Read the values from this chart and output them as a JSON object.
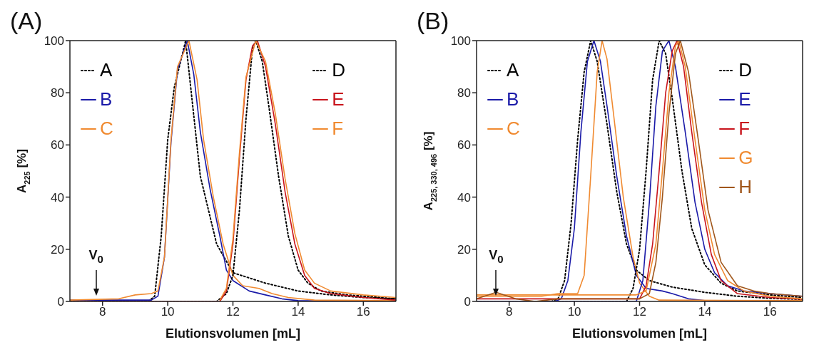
{
  "chart_data": [
    {
      "type": "line",
      "title": "(A)",
      "xlabel": "Elutionsvolumen [mL]",
      "ylabel": "A$_{225}$ [%]",
      "xlim": [
        7,
        17
      ],
      "xticks": [
        8,
        10,
        12,
        14,
        16
      ],
      "ylim": [
        0,
        100
      ],
      "yticks": [
        0,
        20,
        40,
        60,
        80,
        100
      ],
      "legend": "top",
      "grid": false,
      "marker": "none",
      "annotations": [
        "V$_{0}$"
      ],
      "series": [
        {
          "name": "A",
          "color": "#000000",
          "line_style": "dotted",
          "x": [
            7,
            9.4,
            9.6,
            9.8,
            10,
            10.2,
            10.55,
            11,
            11.5,
            12,
            13,
            14,
            15,
            16,
            17
          ],
          "values": [
            0,
            0,
            2,
            25,
            62,
            82,
            100,
            48,
            22,
            11,
            7,
            4,
            2.5,
            1.5,
            1
          ]
        },
        {
          "name": "B",
          "color": "#1a1aa8",
          "line_style": "solid",
          "x": [
            7,
            9.5,
            9.7,
            9.9,
            10.1,
            10.3,
            10.6,
            10.8,
            11,
            11.3,
            11.6,
            11.8,
            12,
            12.5,
            13,
            13.5,
            14,
            17
          ],
          "values": [
            0.5,
            0.5,
            2,
            17,
            61,
            89,
            100,
            87,
            65,
            43,
            25,
            12,
            8,
            4,
            2.5,
            1,
            0.3,
            0
          ]
        },
        {
          "name": "C",
          "color": "#f08a30",
          "line_style": "solid",
          "x": [
            7,
            8.5,
            9,
            9.5,
            9.7,
            9.9,
            10.1,
            10.3,
            10.65,
            10.9,
            11.1,
            11.4,
            11.7,
            12,
            12.3,
            12.8,
            13.2,
            13.7,
            14.5,
            17
          ],
          "values": [
            0.5,
            1,
            2.5,
            3,
            4,
            17,
            62,
            90,
            100,
            85,
            62,
            40,
            22,
            10,
            6,
            5,
            3,
            1.5,
            0.5,
            0.3
          ]
        },
        {
          "name": "D",
          "color": "#000000",
          "line_style": "dotted",
          "x": [
            7,
            11.5,
            11.8,
            12,
            12.2,
            12.4,
            12.6,
            12.7,
            12.9,
            13.1,
            13.4,
            13.7,
            14,
            14.3,
            14.7,
            15.5,
            17
          ],
          "values": [
            0,
            0,
            3,
            10,
            35,
            70,
            97,
            100,
            92,
            75,
            48,
            25,
            12,
            7,
            4,
            2.5,
            1
          ]
        },
        {
          "name": "E",
          "color": "#c8141c",
          "line_style": "solid",
          "x": [
            7,
            11.6,
            11.8,
            12,
            12.2,
            12.4,
            12.6,
            12.75,
            13,
            13.3,
            13.6,
            13.9,
            14.2,
            14.5,
            15,
            16,
            17
          ],
          "values": [
            0,
            0,
            4,
            22,
            55,
            85,
            98,
            100,
            90,
            68,
            42,
            22,
            10,
            5,
            3,
            1.5,
            0.5
          ]
        },
        {
          "name": "F",
          "color": "#f08a30",
          "line_style": "solid",
          "x": [
            11.6,
            11.8,
            12,
            12.2,
            12.4,
            12.7,
            13,
            13.3,
            13.6,
            13.9,
            14.2,
            14.5,
            15,
            16,
            17
          ],
          "values": [
            0.5,
            5,
            24,
            57,
            86,
            100,
            92,
            72,
            47,
            26,
            12,
            7,
            4,
            2.5,
            1.5
          ]
        }
      ]
    },
    {
      "type": "line",
      "title": "(B)",
      "xlabel": "Elutionsvolumen [mL]",
      "ylabel": "A$_{225, 330, 496}$ [%]",
      "xlim": [
        7,
        17
      ],
      "xticks": [
        8,
        10,
        12,
        14,
        16
      ],
      "ylim": [
        0,
        100
      ],
      "yticks": [
        0,
        20,
        40,
        60,
        80,
        100
      ],
      "legend": "top",
      "grid": false,
      "marker": "none",
      "annotations": [
        "V$_{0}$"
      ],
      "series": [
        {
          "name": "A",
          "color": "#000000",
          "line_style": "dotted",
          "x": [
            7,
            9.3,
            9.5,
            9.7,
            9.9,
            10.1,
            10.3,
            10.5,
            10.7,
            11,
            11.3,
            11.6,
            11.9,
            12.3,
            13,
            14,
            15,
            16,
            17
          ],
          "values": [
            0,
            0,
            1,
            8,
            30,
            62,
            88,
            100,
            92,
            68,
            42,
            22,
            12,
            8,
            5.5,
            3.5,
            2,
            1.2,
            0.8
          ]
        },
        {
          "name": "B",
          "color": "#1a1aa8",
          "line_style": "solid",
          "x": [
            7,
            9.4,
            9.6,
            9.8,
            10,
            10.2,
            10.4,
            10.6,
            10.8,
            11,
            11.3,
            11.6,
            11.9,
            12.2,
            12.7,
            13,
            13.5,
            14,
            17
          ],
          "values": [
            0,
            0,
            1,
            8,
            28,
            65,
            92,
            100,
            92,
            75,
            48,
            25,
            10,
            5,
            4,
            3,
            1,
            0.3,
            0
          ]
        },
        {
          "name": "C",
          "color": "#f08a30",
          "line_style": "solid",
          "x": [
            7,
            9,
            9.5,
            10.1,
            10.3,
            10.5,
            10.7,
            10.85,
            11,
            11.2,
            11.5,
            11.8,
            12,
            12.3,
            12.6,
            17
          ],
          "values": [
            2,
            2,
            3,
            3,
            10,
            48,
            88,
            100,
            93,
            72,
            40,
            17,
            7,
            2,
            0.5,
            0.3
          ]
        },
        {
          "name": "D",
          "color": "#000000",
          "line_style": "dotted",
          "x": [
            7,
            11.6,
            11.8,
            12,
            12.2,
            12.4,
            12.6,
            12.8,
            13,
            13.3,
            13.6,
            14,
            14.5,
            15,
            16,
            17
          ],
          "values": [
            0,
            0,
            5,
            20,
            50,
            85,
            100,
            95,
            78,
            50,
            28,
            14,
            7,
            4,
            2.5,
            1.5
          ]
        },
        {
          "name": "E",
          "color": "#1a1aa8",
          "line_style": "solid",
          "x": [
            7,
            11.9,
            12.1,
            12.3,
            12.5,
            12.7,
            12.9,
            13.1,
            13.4,
            13.7,
            14,
            14.3,
            14.7,
            15.2,
            16,
            17
          ],
          "values": [
            0,
            0,
            8,
            38,
            75,
            96,
            100,
            90,
            65,
            38,
            20,
            11,
            6,
            4,
            3,
            2
          ]
        },
        {
          "name": "F",
          "color": "#c8141c",
          "line_style": "solid",
          "x": [
            7,
            12,
            12.2,
            12.4,
            12.6,
            12.8,
            13,
            13.15,
            13.35,
            13.6,
            13.9,
            14.2,
            14.5,
            15,
            16,
            17
          ],
          "values": [
            1,
            1,
            6,
            22,
            50,
            80,
            96,
            100,
            90,
            65,
            38,
            18,
            8,
            3,
            1.5,
            0.8
          ]
        },
        {
          "name": "G",
          "color": "#f08a30",
          "line_style": "solid",
          "x": [
            7,
            11.9,
            12.2,
            12.5,
            12.7,
            12.9,
            13.1,
            13.2,
            13.4,
            13.7,
            14,
            14.3,
            14.7,
            15.2,
            16,
            17
          ],
          "values": [
            2.5,
            2.5,
            4,
            22,
            50,
            80,
            98,
            100,
            90,
            62,
            35,
            18,
            8,
            4,
            2,
            1
          ]
        },
        {
          "name": "H",
          "color": "#a0561a",
          "line_style": "solid",
          "x": [
            7,
            7.6,
            8.2,
            8.8,
            9.5,
            12,
            12.3,
            12.5,
            12.7,
            12.9,
            13.1,
            13.25,
            13.5,
            13.8,
            14.1,
            14.5,
            15,
            15.5,
            16,
            17
          ],
          "values": [
            1,
            3.5,
            1,
            0,
            1,
            1,
            3,
            15,
            40,
            72,
            95,
            100,
            88,
            62,
            35,
            15,
            6,
            4,
            3,
            2
          ]
        }
      ]
    }
  ]
}
